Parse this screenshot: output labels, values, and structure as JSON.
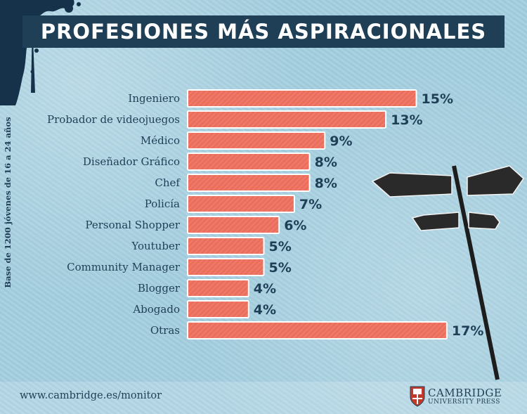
{
  "header": {
    "title": "PROFESIONES MÁS ASPIRACIONALES"
  },
  "side_note": "Base de 1200 jóvenes de 16 a 24 años",
  "footer": {
    "url": "www.cambridge.es/monitor",
    "logo_name": "CAMBRIDGE",
    "logo_sub": "UNIVERSITY PRESS"
  },
  "colors": {
    "bar": "#ec6f5e",
    "title_bg": "#1f3f56",
    "text": "#1f3f56",
    "background": "#a9d3e3"
  },
  "icons": [
    "ink-splatter-icon",
    "signpost-icon",
    "cambridge-shield-icon"
  ],
  "chart_data": {
    "type": "bar",
    "orientation": "horizontal",
    "categories": [
      "Ingeniero",
      "Probador de videojuegos",
      "Médico",
      "Diseñador Gráfico",
      "Chef",
      "Policía",
      "Personal Shopper",
      "Youtuber",
      "Community Manager",
      "Blogger",
      "Abogado",
      "Otras"
    ],
    "values": [
      15,
      13,
      9,
      8,
      8,
      7,
      6,
      5,
      5,
      4,
      4,
      17
    ],
    "value_labels": [
      "15%",
      "13%",
      "9%",
      "8%",
      "8%",
      "7%",
      "6%",
      "5%",
      "5%",
      "4%",
      "4%",
      "17%"
    ],
    "title": "PROFESIONES MÁS ASPIRACIONALES",
    "unit": "%",
    "xlim": [
      0,
      17
    ],
    "grid": false,
    "legend": "none"
  }
}
